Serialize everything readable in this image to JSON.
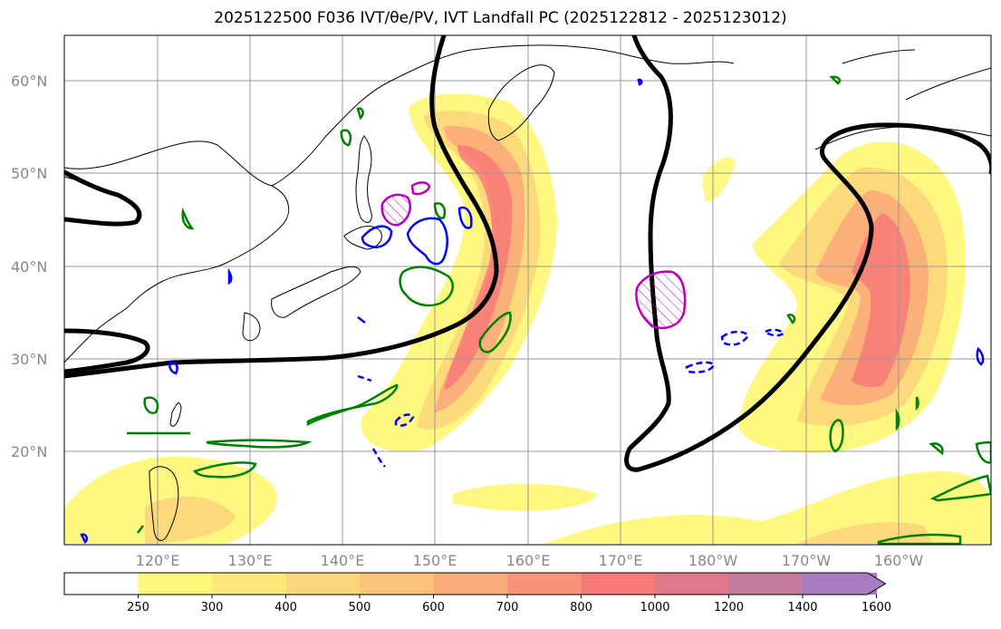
{
  "title": "2025122500 F036 IVT/θe/PV, IVT Landfall PC (2025122812 - 2025123012)",
  "map": {
    "lat_labels": [
      "60°N",
      "50°N",
      "40°N",
      "30°N",
      "20°N"
    ],
    "lon_labels": [
      "120°E",
      "130°E",
      "140°E",
      "150°E",
      "160°E",
      "170°E",
      "180°W",
      "170°W",
      "160°W"
    ],
    "lon_range": [
      112,
      212
    ],
    "lat_range": [
      10,
      65
    ],
    "colors": {
      "pv_contour": "#000000",
      "theta_e_positive": "#008000",
      "theta_e_negative": "#0000ff",
      "landfall_pc": "#bb00bb",
      "grid": "#999999",
      "coastline": "#000000"
    }
  },
  "colorbar": {
    "levels": [
      "250",
      "300",
      "400",
      "500",
      "600",
      "700",
      "800",
      "1000",
      "1200",
      "1400",
      "1600"
    ],
    "colors": [
      "#ffffff",
      "#fef87a",
      "#fde878",
      "#fcd67a",
      "#fcc27a",
      "#fbab7a",
      "#fa927a",
      "#f87a78",
      "#e07a8a",
      "#c47c9e",
      "#a87cc0"
    ],
    "extend": "max"
  }
}
